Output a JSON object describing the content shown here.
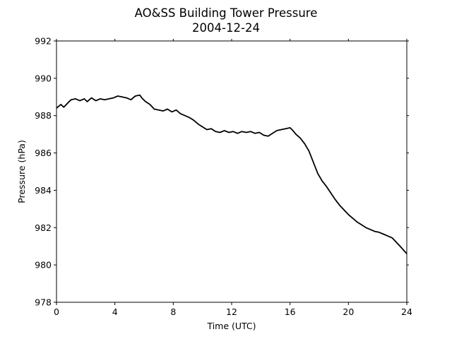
{
  "chart_data": {
    "type": "line",
    "title": "AO&SS Building Tower Pressure",
    "subtitle": "2004-12-24",
    "xlabel": "Time (UTC)",
    "ylabel": "Pressure (hPa)",
    "xlim": [
      0,
      24
    ],
    "ylim": [
      978,
      992
    ],
    "xticks": [
      0,
      4,
      8,
      12,
      16,
      20,
      24
    ],
    "yticks": [
      978,
      980,
      982,
      984,
      986,
      988,
      990,
      992
    ],
    "grid": false,
    "series": [
      {
        "color": "#000000",
        "x": [
          0,
          0.3,
          0.5,
          0.8,
          1.0,
          1.3,
          1.6,
          1.9,
          2.1,
          2.4,
          2.7,
          3.0,
          3.3,
          3.6,
          3.9,
          4.2,
          4.5,
          4.8,
          5.1,
          5.4,
          5.7,
          5.9,
          6.1,
          6.4,
          6.7,
          7.0,
          7.3,
          7.6,
          7.9,
          8.2,
          8.5,
          8.8,
          9.1,
          9.4,
          9.7,
          10.0,
          10.3,
          10.6,
          10.9,
          11.2,
          11.5,
          11.8,
          12.1,
          12.4,
          12.7,
          13.0,
          13.3,
          13.6,
          13.9,
          14.2,
          14.5,
          14.8,
          15.1,
          15.4,
          15.7,
          16.0,
          16.2,
          16.4,
          16.7,
          17.0,
          17.3,
          17.6,
          17.9,
          18.2,
          18.5,
          18.8,
          19.1,
          19.4,
          19.7,
          20.0,
          20.3,
          20.6,
          20.9,
          21.2,
          21.5,
          21.8,
          22.1,
          22.4,
          22.7,
          23.0,
          23.3,
          23.6,
          24.0
        ],
        "values": [
          988.4,
          988.6,
          988.45,
          988.7,
          988.85,
          988.9,
          988.8,
          988.9,
          988.75,
          988.95,
          988.8,
          988.9,
          988.85,
          988.9,
          988.95,
          989.05,
          989.0,
          988.95,
          988.85,
          989.05,
          989.1,
          988.9,
          988.75,
          988.6,
          988.35,
          988.3,
          988.25,
          988.35,
          988.2,
          988.3,
          988.1,
          988.0,
          987.9,
          987.75,
          987.55,
          987.4,
          987.25,
          987.3,
          987.15,
          987.1,
          987.2,
          987.1,
          987.15,
          987.05,
          987.15,
          987.1,
          987.15,
          987.05,
          987.1,
          986.95,
          986.9,
          987.05,
          987.2,
          987.25,
          987.3,
          987.35,
          987.2,
          987.0,
          986.8,
          986.5,
          986.1,
          985.5,
          984.9,
          984.5,
          984.2,
          983.85,
          983.5,
          983.2,
          982.95,
          982.7,
          982.5,
          982.3,
          982.15,
          982.0,
          981.9,
          981.8,
          981.75,
          981.65,
          981.55,
          981.45,
          981.2,
          980.95,
          980.6
        ]
      }
    ]
  }
}
